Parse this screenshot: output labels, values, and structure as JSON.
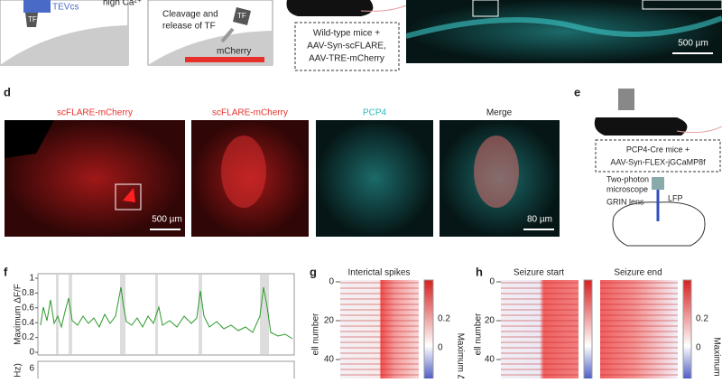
{
  "panel_top": {
    "tf_label": "TF",
    "tevcs": "TEVcs",
    "high_ca": "high Ca²⁺",
    "cleavage_lines": [
      "Cleavage and",
      "release of TF"
    ],
    "tf_label2": "TF",
    "mcherry": "mCherry",
    "mice_lines": [
      "Wild-type mice +",
      "AAV-Syn-scFLARE,",
      "AAV-TRE-mCherry"
    ],
    "scale": "500 µm"
  },
  "panel_d": {
    "letter": "d",
    "images": [
      {
        "label": "scFLARE-mCherry",
        "scale": "500 µm"
      },
      {
        "label": "scFLARE-mCherry"
      },
      {
        "label": "PCP4"
      },
      {
        "label": "Merge",
        "scale": "80 µm"
      }
    ]
  },
  "panel_e": {
    "letter": "e",
    "mice_lines": [
      "PCP4-Cre mice +",
      "AAV-Syn-FLEX-jGCaMP8f"
    ],
    "microscope_lines": [
      "Two-photon",
      "microscope"
    ],
    "grin": "GRIN lens",
    "lfp": "LFP"
  },
  "panel_f": {
    "letter": "f",
    "ylabel": "Maximum ΔF/F",
    "yticks": [
      0,
      0.2,
      0.4,
      0.6,
      0.8,
      1
    ],
    "lower_ylabel": "Hz)",
    "lower_tick": 6
  },
  "panel_g": {
    "letter": "g",
    "title": "Interictal spikes",
    "ylabel": "ell number",
    "yticks": [
      0,
      20,
      40
    ],
    "cbar_ticks": [
      0.2,
      0
    ],
    "cbar_label": "Maximum Δ"
  },
  "panel_h": {
    "letter": "h",
    "titles": [
      "Seizure start",
      "Seizure end"
    ],
    "ylabel": "ell number",
    "yticks": [
      0,
      20,
      40
    ],
    "cbar_ticks": [
      0.2,
      0
    ],
    "cbar_label": "Maximum"
  }
}
